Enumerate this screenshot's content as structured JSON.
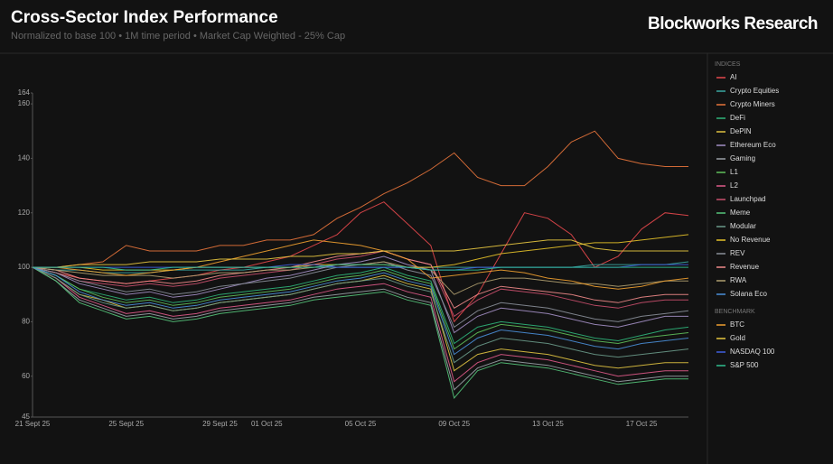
{
  "chart_data": {
    "type": "line",
    "title": "Cross-Sector Index Performance",
    "subtitle": "Normalized to base 100 • 1M time period • Market Cap Weighted - 25% Cap",
    "brand": "Blockworks Research",
    "categories": [
      "21 Sept 25",
      null,
      null,
      null,
      "25 Sept 25",
      null,
      null,
      null,
      "29 Sept 25",
      null,
      "01 Oct 25",
      null,
      null,
      null,
      "05 Oct 25",
      null,
      null,
      null,
      "09 Oct 25",
      null,
      null,
      null,
      "13 Oct 25",
      null,
      null,
      null,
      "17 Oct 25",
      null,
      null
    ],
    "ylim": [
      45,
      164
    ],
    "yticks": [
      45,
      60,
      80,
      100,
      120,
      140,
      160,
      164
    ],
    "grid": false,
    "legend": "right",
    "series": [
      {
        "name": "AI",
        "group": "INDICES",
        "color": "#e5484d",
        "values": [
          100,
          98,
          96,
          95,
          94,
          95,
          96,
          97,
          99,
          100,
          102,
          104,
          108,
          112,
          120,
          124,
          116,
          108,
          80,
          90,
          105,
          120,
          118,
          112,
          100,
          104,
          114,
          120,
          119
        ]
      },
      {
        "name": "Crypto Equities",
        "group": "INDICES",
        "color": "#3aa7a3",
        "values": [
          100,
          99,
          99,
          98,
          98,
          98,
          99,
          99,
          99,
          99,
          100,
          100,
          100,
          100,
          100,
          100,
          100,
          100,
          100,
          100,
          100,
          100,
          100,
          100,
          101,
          101,
          101,
          101,
          102
        ]
      },
      {
        "name": "Crypto Miners",
        "group": "INDICES",
        "color": "#e8743b",
        "values": [
          100,
          100,
          101,
          102,
          108,
          106,
          106,
          106,
          108,
          108,
          110,
          110,
          112,
          118,
          122,
          127,
          131,
          136,
          142,
          133,
          130,
          130,
          137,
          146,
          150,
          140,
          138,
          137,
          137
        ]
      },
      {
        "name": "DeFi",
        "group": "INDICES",
        "color": "#2fb57a",
        "values": [
          100,
          97,
          92,
          90,
          88,
          89,
          87,
          88,
          90,
          91,
          92,
          93,
          95,
          97,
          98,
          100,
          97,
          95,
          72,
          78,
          80,
          79,
          78,
          76,
          74,
          73,
          75,
          77,
          78
        ]
      },
      {
        "name": "DePIN",
        "group": "INDICES",
        "color": "#e0c341",
        "values": [
          100,
          96,
          90,
          88,
          85,
          86,
          84,
          85,
          87,
          88,
          89,
          90,
          92,
          94,
          95,
          97,
          94,
          92,
          62,
          68,
          70,
          69,
          68,
          66,
          64,
          63,
          64,
          65,
          65
        ]
      },
      {
        "name": "Ethereum Eco",
        "group": "INDICES",
        "color": "#a38fc4",
        "values": [
          100,
          98,
          94,
          92,
          90,
          91,
          89,
          90,
          92,
          94,
          96,
          97,
          99,
          101,
          102,
          104,
          101,
          99,
          76,
          82,
          85,
          84,
          83,
          81,
          79,
          78,
          80,
          82,
          82
        ]
      },
      {
        "name": "Gaming",
        "group": "INDICES",
        "color": "#9aa0a6",
        "values": [
          100,
          95,
          88,
          85,
          82,
          83,
          81,
          82,
          84,
          85,
          86,
          87,
          89,
          90,
          91,
          92,
          89,
          87,
          55,
          63,
          66,
          65,
          64,
          62,
          60,
          58,
          59,
          60,
          60
        ]
      },
      {
        "name": "L1",
        "group": "INDICES",
        "color": "#5fbf5a",
        "values": [
          100,
          97,
          92,
          89,
          87,
          88,
          86,
          87,
          89,
          90,
          91,
          92,
          94,
          96,
          97,
          99,
          96,
          94,
          70,
          76,
          79,
          78,
          77,
          75,
          73,
          72,
          74,
          75,
          76
        ]
      },
      {
        "name": "L2",
        "group": "INDICES",
        "color": "#e05a8a",
        "values": [
          100,
          96,
          89,
          86,
          83,
          84,
          82,
          83,
          85,
          86,
          87,
          88,
          90,
          92,
          93,
          94,
          91,
          89,
          58,
          65,
          68,
          67,
          66,
          64,
          62,
          60,
          61,
          62,
          62
        ]
      },
      {
        "name": "Launchpad",
        "group": "INDICES",
        "color": "#c94f6d",
        "values": [
          100,
          98,
          95,
          94,
          93,
          94,
          93,
          94,
          96,
          97,
          98,
          99,
          101,
          103,
          104,
          106,
          103,
          101,
          82,
          88,
          92,
          91,
          90,
          88,
          86,
          85,
          87,
          88,
          88
        ]
      },
      {
        "name": "Meme",
        "group": "INDICES",
        "color": "#55c47a",
        "values": [
          100,
          95,
          87,
          84,
          81,
          82,
          80,
          81,
          83,
          84,
          85,
          86,
          88,
          89,
          90,
          91,
          88,
          86,
          52,
          62,
          65,
          64,
          63,
          61,
          59,
          57,
          58,
          59,
          59
        ]
      },
      {
        "name": "Modular",
        "group": "INDICES",
        "color": "#6a9a8a",
        "values": [
          100,
          96,
          90,
          87,
          85,
          86,
          84,
          85,
          87,
          88,
          89,
          90,
          92,
          94,
          95,
          96,
          93,
          91,
          65,
          71,
          74,
          73,
          72,
          70,
          68,
          67,
          68,
          69,
          70
        ]
      },
      {
        "name": "No Revenue",
        "group": "INDICES",
        "color": "#e6c229",
        "values": [
          100,
          100,
          100,
          99,
          99,
          99,
          99,
          100,
          100,
          100,
          100,
          100,
          101,
          101,
          101,
          101,
          100,
          100,
          101,
          103,
          105,
          106,
          107,
          108,
          109,
          109,
          110,
          111,
          112
        ]
      },
      {
        "name": "REV",
        "group": "INDICES",
        "color": "#8a8f99",
        "values": [
          100,
          98,
          95,
          93,
          91,
          92,
          90,
          91,
          93,
          94,
          95,
          96,
          98,
          100,
          101,
          102,
          99,
          97,
          78,
          84,
          87,
          86,
          85,
          83,
          81,
          80,
          82,
          83,
          84
        ]
      },
      {
        "name": "Revenue",
        "group": "INDICES",
        "color": "#f08a8a",
        "values": [
          100,
          99,
          96,
          95,
          94,
          95,
          94,
          95,
          97,
          98,
          99,
          100,
          102,
          104,
          105,
          106,
          103,
          101,
          85,
          90,
          93,
          92,
          91,
          90,
          88,
          87,
          89,
          90,
          90
        ]
      },
      {
        "name": "RWA",
        "group": "INDICES",
        "color": "#b0a070",
        "values": [
          100,
          99,
          98,
          97,
          97,
          97,
          96,
          97,
          98,
          98,
          99,
          99,
          100,
          101,
          101,
          102,
          100,
          99,
          90,
          94,
          96,
          96,
          95,
          94,
          94,
          93,
          94,
          95,
          95
        ]
      },
      {
        "name": "Solana Eco",
        "group": "INDICES",
        "color": "#4a8fd9",
        "values": [
          100,
          97,
          91,
          88,
          86,
          87,
          85,
          86,
          88,
          89,
          90,
          91,
          93,
          95,
          96,
          98,
          95,
          93,
          68,
          74,
          77,
          76,
          75,
          73,
          71,
          70,
          72,
          73,
          74
        ]
      },
      {
        "name": "BTC",
        "group": "BENCHMARK",
        "color": "#f0a030",
        "values": [
          100,
          100,
          99,
          98,
          97,
          98,
          99,
          100,
          102,
          104,
          106,
          108,
          110,
          109,
          108,
          106,
          103,
          96,
          97,
          98,
          99,
          98,
          96,
          95,
          93,
          92,
          93,
          95,
          96
        ]
      },
      {
        "name": "Gold",
        "group": "BENCHMARK",
        "color": "#e8c840",
        "values": [
          100,
          100,
          101,
          101,
          101,
          102,
          102,
          102,
          103,
          103,
          103,
          104,
          104,
          105,
          105,
          106,
          106,
          106,
          106,
          107,
          108,
          109,
          110,
          110,
          107,
          106,
          106,
          106,
          106
        ]
      },
      {
        "name": "NASDAQ 100",
        "group": "BENCHMARK",
        "color": "#4060e0",
        "values": [
          100,
          100,
          100,
          100,
          100,
          100,
          100,
          100,
          100,
          100,
          100,
          101,
          101,
          100,
          100,
          100,
          100,
          99,
          99,
          100,
          100,
          100,
          100,
          100,
          100,
          100,
          101,
          101,
          101
        ]
      },
      {
        "name": "S&P 500",
        "group": "BENCHMARK",
        "color": "#30c090",
        "values": [
          100,
          100,
          100,
          100,
          99,
          99,
          100,
          100,
          100,
          100,
          100,
          100,
          100,
          101,
          101,
          101,
          100,
          99,
          99,
          99,
          100,
          100,
          100,
          100,
          100,
          100,
          100,
          100,
          100
        ]
      }
    ]
  }
}
